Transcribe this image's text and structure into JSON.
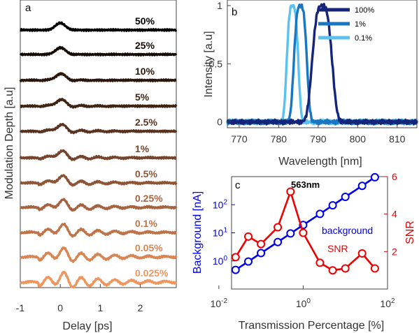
{
  "chart_data": [
    {
      "panel": "a",
      "type": "line",
      "xlabel": "Delay [ps]",
      "ylabel": "Modulation Depth [a.u]",
      "xlim": [
        -1,
        2.9
      ],
      "xticks": [
        -1,
        0,
        1,
        2
      ],
      "series": [
        {
          "name": "50%",
          "color": "#000000"
        },
        {
          "name": "25%",
          "color": "#150b05"
        },
        {
          "name": "10%",
          "color": "#2a170c"
        },
        {
          "name": "5%",
          "color": "#3f2413"
        },
        {
          "name": "2.5%",
          "color": "#5a3320"
        },
        {
          "name": "1%",
          "color": "#74452c"
        },
        {
          "name": "0.5%",
          "color": "#8d5536"
        },
        {
          "name": "0.25%",
          "color": "#a5633f"
        },
        {
          "name": "0.1%",
          "color": "#be7449"
        },
        {
          "name": "0.05%",
          "color": "#d68553"
        },
        {
          "name": "0.025%",
          "color": "#ee965e"
        }
      ]
    },
    {
      "panel": "b",
      "type": "line",
      "xlabel": "Wavelength [nm]",
      "ylabel": "Intensity [a.u]",
      "xlim": [
        767,
        815
      ],
      "ylim": [
        -0.05,
        1
      ],
      "xticks": [
        770,
        780,
        790,
        800,
        810
      ],
      "yticks": [
        "0",
        "0.5",
        "1"
      ],
      "legend_position": "top-right",
      "series": [
        {
          "name": "100%",
          "color": "#15257a",
          "center": 791,
          "width": 2.6
        },
        {
          "name": "1%",
          "color": "#1877c2",
          "center": 785.5,
          "width": 1.7
        },
        {
          "name": "0.1%",
          "color": "#5bc2ef",
          "center": 783.5,
          "width": 1.5
        }
      ]
    },
    {
      "panel": "c",
      "type": "line",
      "xlabel": "Transmission Percentage [%]",
      "ylabel_left": "Background [nA]",
      "ylabel_right": "SNR",
      "annotation": "563nm",
      "log_x": true,
      "log_y_left": true,
      "xlim": [
        0.02,
        100
      ],
      "ylim_left": [
        0.1,
        1000
      ],
      "ylim_right": [
        0,
        6
      ],
      "xticks": [
        {
          "base": "10",
          "exp": "-2"
        },
        {
          "base": "10",
          "exp": "0"
        },
        {
          "base": "10",
          "exp": "2"
        }
      ],
      "yticks_left": [
        {
          "base": "10",
          "exp": "0"
        },
        {
          "base": "10",
          "exp": "1"
        },
        {
          "base": "10",
          "exp": "2"
        }
      ],
      "yticks_right": [
        "2",
        "4",
        "6"
      ],
      "x": [
        0.025,
        0.05,
        0.1,
        0.25,
        0.5,
        1,
        2.5,
        5,
        10,
        25,
        50
      ],
      "series": [
        {
          "name": "background",
          "axis": "left",
          "color": "#0000ee",
          "values": [
            0.48,
            0.95,
            1.9,
            4.7,
            9.5,
            19,
            47,
            95,
            190,
            470,
            950
          ]
        },
        {
          "name": "SNR",
          "axis": "right",
          "color": "#ee0000",
          "values": [
            1.7,
            2.8,
            2.4,
            3.3,
            5.2,
            3.0,
            1.4,
            1.0,
            1.1,
            1.9,
            1.1
          ]
        }
      ]
    }
  ]
}
